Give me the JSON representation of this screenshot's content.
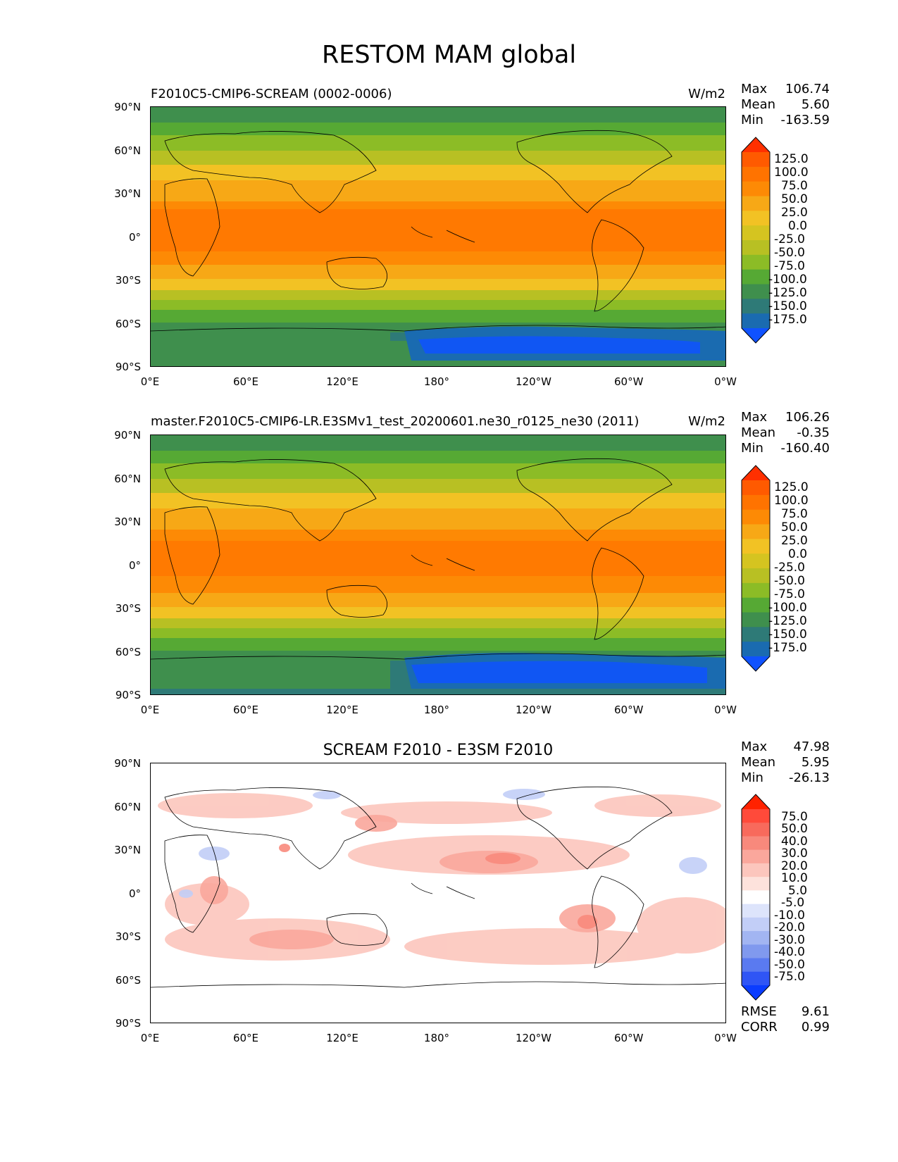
{
  "title": "RESTOM MAM global",
  "lat_ticks": [
    "90°N",
    "60°N",
    "30°N",
    "0°",
    "30°S",
    "60°S",
    "90°S"
  ],
  "lon_ticks": [
    "0°E",
    "60°E",
    "120°E",
    "180°",
    "120°W",
    "60°W",
    "0°W"
  ],
  "panels": [
    {
      "title_left": "F2010C5-CMIP6-SCREAM (0002-0006)",
      "title_right": "W/m2",
      "title_center": "",
      "stats": [
        {
          "label": "Max",
          "value": "106.74"
        },
        {
          "label": "Mean",
          "value": "5.60"
        },
        {
          "label": "Min",
          "value": "-163.59"
        }
      ],
      "colorbar": {
        "labels": [
          "125.0",
          "100.0",
          "75.0",
          "50.0",
          "25.0",
          "0.0",
          "-25.0",
          "-50.0",
          "-75.0",
          "-100.0",
          "-125.0",
          "-150.0",
          "-175.0"
        ],
        "colors": [
          "#ff3000",
          "#ff5a00",
          "#ff7300",
          "#fd8a05",
          "#f7a816",
          "#f2c224",
          "#d5c420",
          "#b8c023",
          "#8cbc26",
          "#56a934",
          "#3f8f4d",
          "#2e7a77",
          "#1a6bb0",
          "#0f52ff"
        ]
      },
      "stats_bottom": []
    },
    {
      "title_left": "master.F2010C5-CMIP6-LR.E3SMv1_test_20200601.ne30_r0125_ne30 (2011)",
      "title_right": "W/m2",
      "title_center": "",
      "stats": [
        {
          "label": "Max",
          "value": "106.26"
        },
        {
          "label": "Mean",
          "value": "-0.35"
        },
        {
          "label": "Min",
          "value": "-160.40"
        }
      ],
      "colorbar": {
        "labels": [
          "125.0",
          "100.0",
          "75.0",
          "50.0",
          "25.0",
          "0.0",
          "-25.0",
          "-50.0",
          "-75.0",
          "-100.0",
          "-125.0",
          "-150.0",
          "-175.0"
        ],
        "colors": [
          "#ff3000",
          "#ff5a00",
          "#ff7300",
          "#fd8a05",
          "#f7a816",
          "#f2c224",
          "#d5c420",
          "#b8c023",
          "#8cbc26",
          "#56a934",
          "#3f8f4d",
          "#2e7a77",
          "#1a6bb0",
          "#0f52ff"
        ]
      },
      "stats_bottom": []
    },
    {
      "title_left": "",
      "title_right": "",
      "title_center": "SCREAM F2010 - E3SM F2010",
      "stats": [
        {
          "label": "Max",
          "value": "47.98"
        },
        {
          "label": "Mean",
          "value": "5.95"
        },
        {
          "label": "Min",
          "value": "-26.13"
        }
      ],
      "colorbar": {
        "labels": [
          "75.0",
          "50.0",
          "40.0",
          "30.0",
          "20.0",
          "10.0",
          "5.0",
          "-5.0",
          "-10.0",
          "-20.0",
          "-30.0",
          "-40.0",
          "-50.0",
          "-75.0"
        ],
        "colors": [
          "#ff2200",
          "#ff4a3a",
          "#f86a5c",
          "#f8897c",
          "#faa79c",
          "#fcc6bd",
          "#fde2dc",
          "#ffffff",
          "#dde4fb",
          "#c2cef7",
          "#a2b5f2",
          "#8099ee",
          "#5a7af0",
          "#2f55f5",
          "#0a3cff"
        ]
      },
      "stats_bottom": [
        {
          "label": "RMSE",
          "value": "9.61"
        },
        {
          "label": "CORR",
          "value": "0.99"
        }
      ]
    }
  ]
}
